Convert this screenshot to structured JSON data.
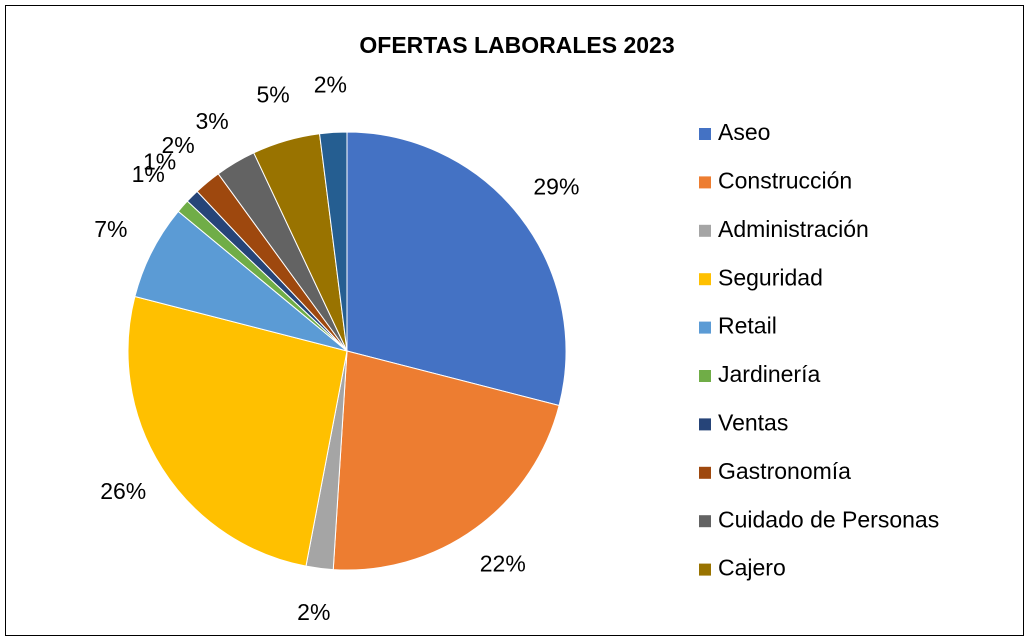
{
  "chart_data": {
    "type": "pie",
    "title": "OFERTAS LABORALES 2023",
    "categories": [
      "Aseo",
      "Construcción",
      "Administración",
      "Seguridad",
      "Retail",
      "Jardinería",
      "Ventas",
      "Gastronomía",
      "Cuidado de Personas",
      "Cajero",
      null
    ],
    "values": [
      29,
      22,
      2,
      26,
      7,
      1,
      1,
      2,
      3,
      5,
      2
    ],
    "value_labels": [
      "29%",
      "22%",
      "2%",
      "26%",
      "7%",
      "1%",
      "1%",
      "2%",
      "3%",
      "5%",
      "2%"
    ],
    "colors": [
      "#4472c4",
      "#ed7d31",
      "#a5a5a5",
      "#ffc000",
      "#5b9bd5",
      "#70ad47",
      "#264478",
      "#9e480e",
      "#636363",
      "#997300",
      "#255e91"
    ],
    "legend": "right"
  }
}
